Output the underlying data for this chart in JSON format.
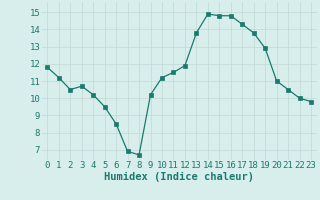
{
  "x": [
    0,
    1,
    2,
    3,
    4,
    5,
    6,
    7,
    8,
    9,
    10,
    11,
    12,
    13,
    14,
    15,
    16,
    17,
    18,
    19,
    20,
    21,
    22,
    23
  ],
  "y": [
    11.8,
    11.2,
    10.5,
    10.7,
    10.2,
    9.5,
    8.5,
    6.9,
    6.7,
    10.2,
    11.2,
    11.5,
    11.9,
    13.8,
    14.9,
    14.8,
    14.8,
    14.3,
    13.8,
    12.9,
    11.0,
    10.5,
    10.0,
    9.8
  ],
  "xlabel": "Humidex (Indice chaleur)",
  "xlim": [
    -0.5,
    23.5
  ],
  "ylim": [
    6.4,
    15.6
  ],
  "yticks": [
    7,
    8,
    9,
    10,
    11,
    12,
    13,
    14,
    15
  ],
  "xticks": [
    0,
    1,
    2,
    3,
    4,
    5,
    6,
    7,
    8,
    9,
    10,
    11,
    12,
    13,
    14,
    15,
    16,
    17,
    18,
    19,
    20,
    21,
    22,
    23
  ],
  "line_color": "#1a7a6e",
  "marker": "s",
  "marker_size": 2.5,
  "bg_color": "#d8eeec",
  "grid_color": "#c0d8d4",
  "tick_label_fontsize": 6.5,
  "xlabel_fontsize": 7.5
}
